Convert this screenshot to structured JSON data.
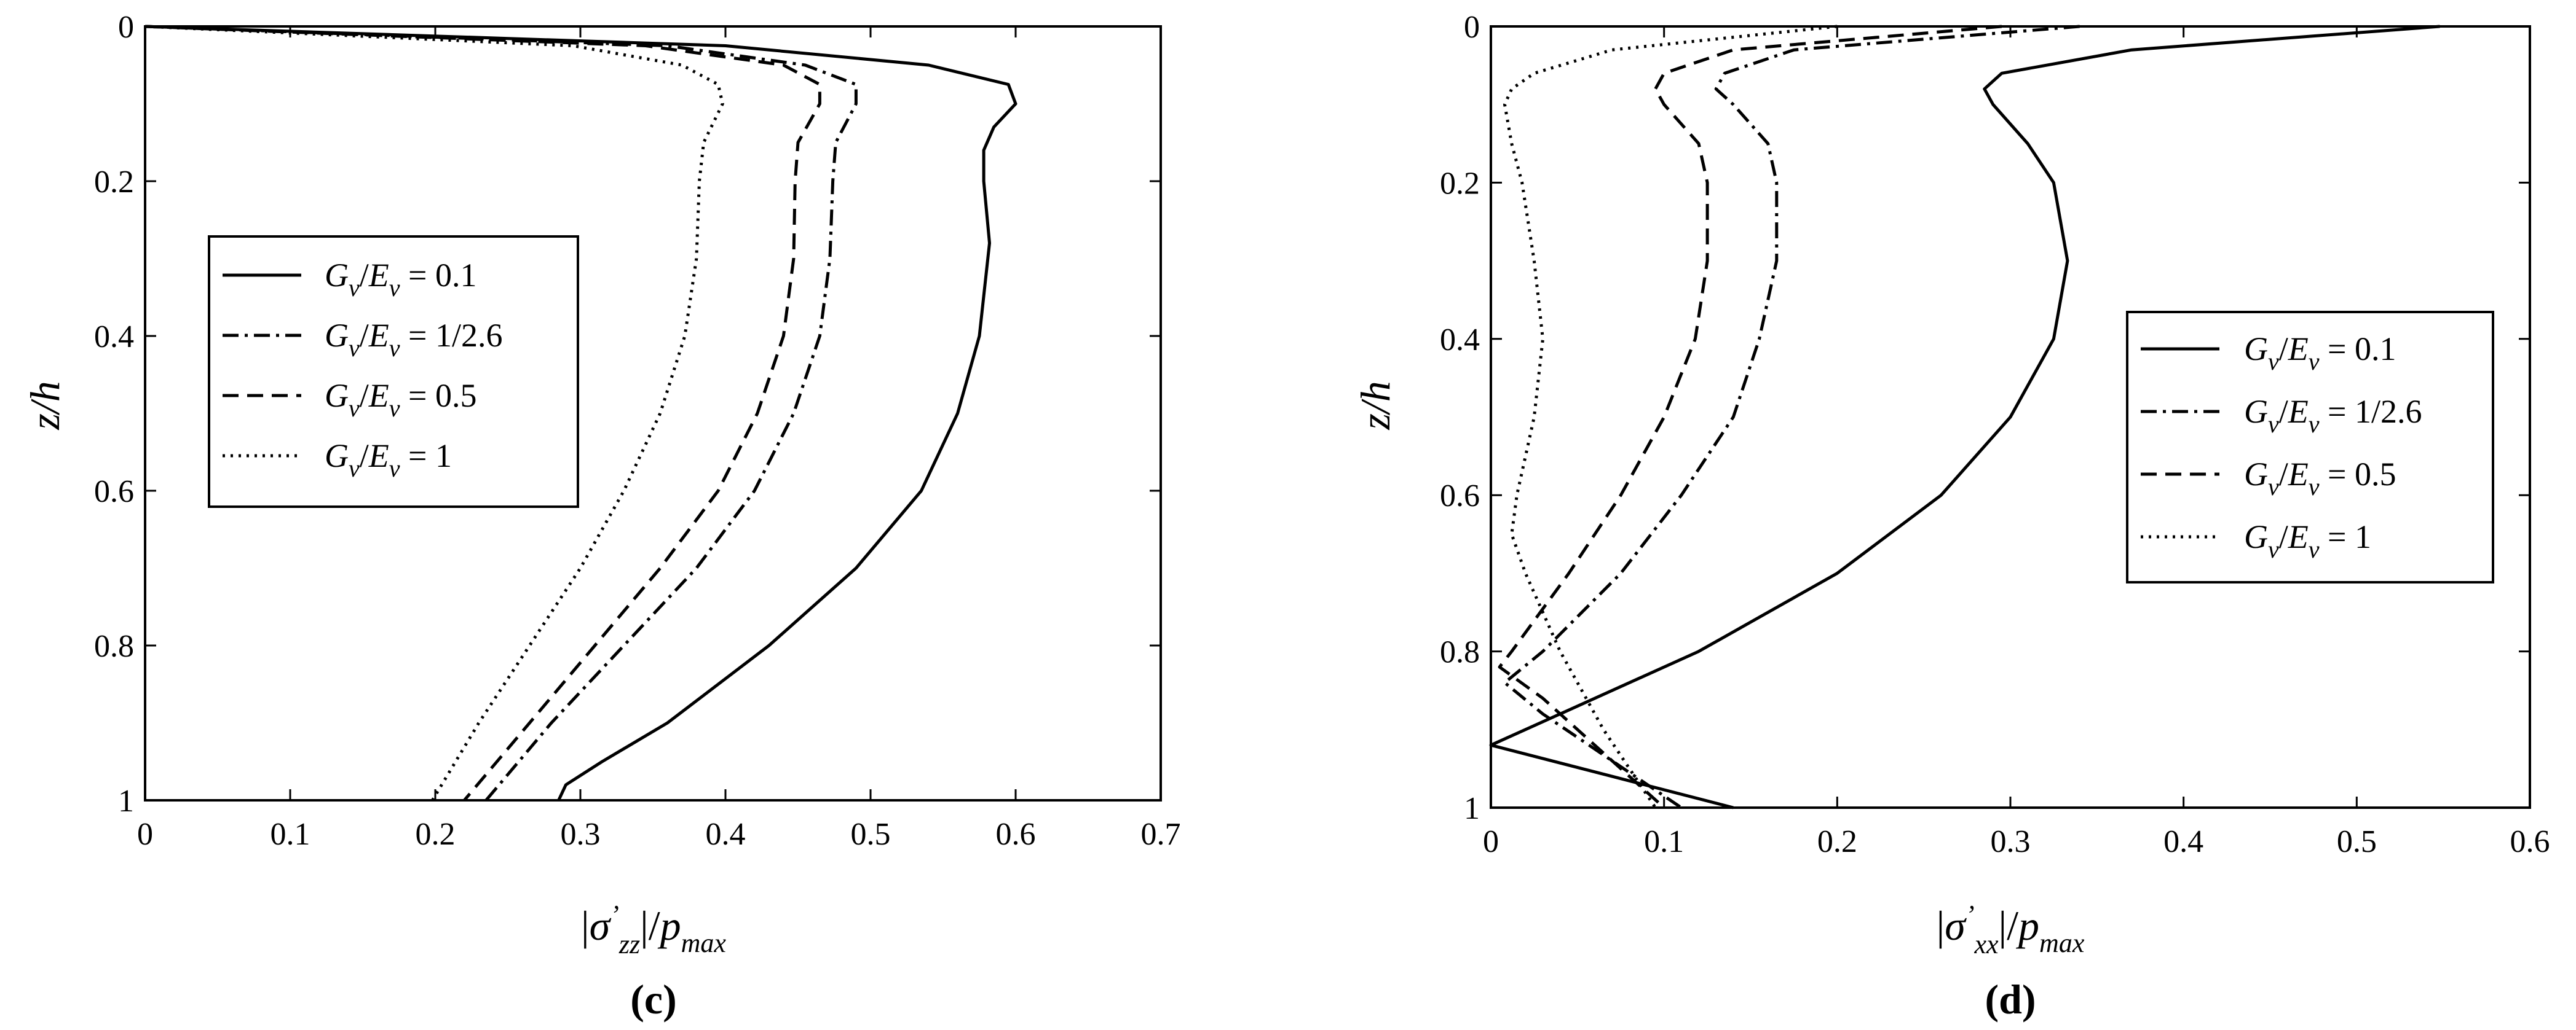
{
  "chart_data": [
    {
      "type": "line",
      "panel_label": "(c)",
      "xlabel": "|σ'zz|/pmax",
      "ylabel": "z/h",
      "xlim": [
        0,
        0.7
      ],
      "ylim": [
        0,
        1
      ],
      "y_inverted": true,
      "xticks": [
        "0",
        "0.1",
        "0.2",
        "0.3",
        "0.4",
        "0.5",
        "0.6",
        "0.7"
      ],
      "yticks": [
        "0",
        "0.2",
        "0.4",
        "0.6",
        "0.8",
        "1"
      ],
      "legend_position": "left-middle",
      "series": [
        {
          "name": "Gv/Ev = 0.1",
          "style": "solid",
          "y": [
            0,
            0.025,
            0.05,
            0.075,
            0.1,
            0.13,
            0.16,
            0.2,
            0.28,
            0.4,
            0.5,
            0.6,
            0.7,
            0.8,
            0.9,
            0.95,
            0.98,
            1.0
          ],
          "x": [
            0,
            0.4,
            0.54,
            0.595,
            0.6,
            0.585,
            0.578,
            0.578,
            0.582,
            0.575,
            0.56,
            0.535,
            0.49,
            0.43,
            0.36,
            0.315,
            0.29,
            0.285
          ]
        },
        {
          "name": "Gv/Ev = 1/2.6",
          "style": "dashdot",
          "y": [
            0,
            0.025,
            0.05,
            0.075,
            0.1,
            0.15,
            0.2,
            0.3,
            0.4,
            0.5,
            0.6,
            0.7,
            0.8,
            0.9,
            1.0
          ],
          "x": [
            0,
            0.36,
            0.455,
            0.49,
            0.49,
            0.476,
            0.474,
            0.472,
            0.465,
            0.447,
            0.42,
            0.38,
            0.33,
            0.28,
            0.235
          ]
        },
        {
          "name": "Gv/Ev = 0.5",
          "style": "dashed",
          "y": [
            0,
            0.025,
            0.05,
            0.075,
            0.1,
            0.15,
            0.2,
            0.3,
            0.4,
            0.5,
            0.6,
            0.7,
            0.8,
            0.9,
            1.0
          ],
          "x": [
            0,
            0.345,
            0.44,
            0.465,
            0.465,
            0.45,
            0.448,
            0.447,
            0.44,
            0.422,
            0.395,
            0.355,
            0.31,
            0.265,
            0.22
          ]
        },
        {
          "name": "Gv/Ev = 1",
          "style": "dotted",
          "y": [
            0,
            0.025,
            0.05,
            0.075,
            0.1,
            0.15,
            0.2,
            0.3,
            0.4,
            0.5,
            0.6,
            0.7,
            0.8,
            0.9,
            1.0
          ],
          "x": [
            0,
            0.295,
            0.37,
            0.395,
            0.398,
            0.385,
            0.382,
            0.38,
            0.372,
            0.355,
            0.33,
            0.3,
            0.265,
            0.23,
            0.198
          ]
        }
      ]
    },
    {
      "type": "line",
      "panel_label": "(d)",
      "xlabel": "|σ'xx|/pmax",
      "ylabel": "z/h",
      "xlim": [
        0,
        0.6
      ],
      "ylim": [
        0,
        1
      ],
      "y_inverted": true,
      "xticks": [
        "0",
        "0.1",
        "0.2",
        "0.3",
        "0.4",
        "0.5",
        "0.6"
      ],
      "yticks": [
        "0",
        "0.2",
        "0.4",
        "0.6",
        "0.8",
        "1"
      ],
      "legend_position": "right-middle",
      "series": [
        {
          "name": "Gv/Ev = 0.1",
          "style": "solid",
          "y": [
            0,
            0.03,
            0.06,
            0.08,
            0.1,
            0.15,
            0.2,
            0.3,
            0.4,
            0.5,
            0.6,
            0.7,
            0.8,
            0.88,
            0.92,
            0.96,
            1.0
          ],
          "x": [
            0.548,
            0.37,
            0.295,
            0.285,
            0.29,
            0.31,
            0.325,
            0.333,
            0.325,
            0.3,
            0.26,
            0.2,
            0.12,
            0.04,
            0.0,
            0.07,
            0.14
          ]
        },
        {
          "name": "Gv/Ev = 1/2.6",
          "style": "dashdot",
          "y": [
            0,
            0.03,
            0.06,
            0.08,
            0.1,
            0.15,
            0.2,
            0.3,
            0.4,
            0.5,
            0.6,
            0.7,
            0.8,
            0.84,
            0.88,
            0.94,
            1.0
          ],
          "x": [
            0.34,
            0.175,
            0.135,
            0.13,
            0.14,
            0.16,
            0.165,
            0.165,
            0.155,
            0.14,
            0.11,
            0.075,
            0.03,
            0.008,
            0.03,
            0.07,
            0.11
          ]
        },
        {
          "name": "Gv/Ev = 0.5",
          "style": "dashed",
          "y": [
            0,
            0.03,
            0.06,
            0.08,
            0.1,
            0.15,
            0.2,
            0.3,
            0.4,
            0.5,
            0.6,
            0.7,
            0.8,
            0.82,
            0.86,
            0.93,
            1.0
          ],
          "x": [
            0.295,
            0.14,
            0.1,
            0.095,
            0.1,
            0.12,
            0.125,
            0.125,
            0.118,
            0.1,
            0.075,
            0.045,
            0.012,
            0.005,
            0.03,
            0.065,
            0.1
          ]
        },
        {
          "name": "Gv/Ev = 1",
          "style": "dotted",
          "y": [
            0,
            0.03,
            0.06,
            0.08,
            0.1,
            0.15,
            0.2,
            0.3,
            0.4,
            0.5,
            0.6,
            0.65,
            0.7,
            0.8,
            0.9,
            1.0
          ],
          "x": [
            0.2,
            0.07,
            0.025,
            0.012,
            0.008,
            0.012,
            0.018,
            0.025,
            0.03,
            0.025,
            0.015,
            0.012,
            0.02,
            0.04,
            0.065,
            0.095
          ]
        }
      ]
    }
  ]
}
